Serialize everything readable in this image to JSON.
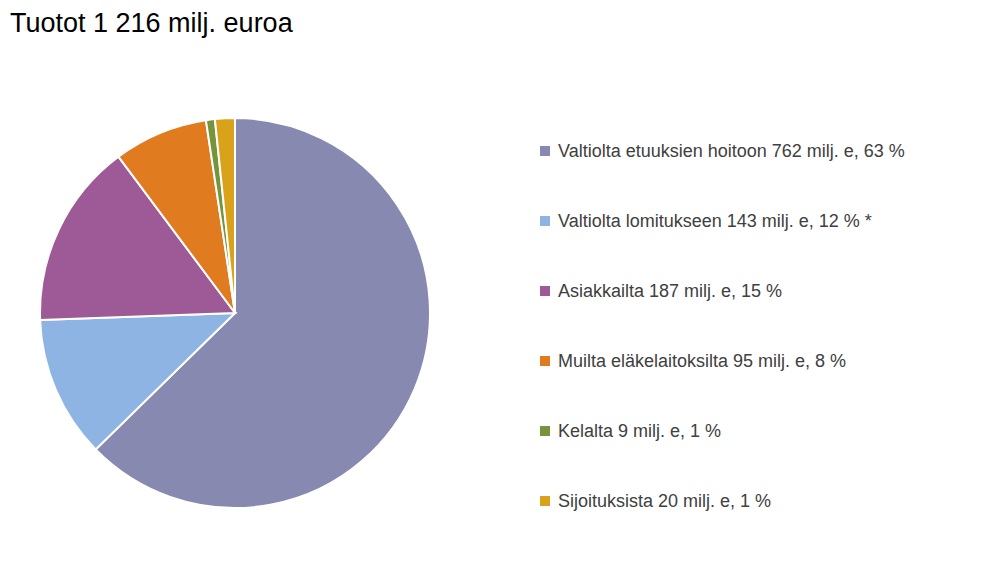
{
  "chart_data": {
    "type": "pie",
    "title": "Tuotot 1 216 milj. euroa",
    "categories": [
      "Valtiolta etuuksien hoitoon 762 milj. e, 63 %",
      "Valtiolta lomitukseen 143 milj. e, 12 % *",
      "Asiakkailta 187 milj. e, 15 %",
      "Muilta eläkelaitoksilta 95 milj. e, 8 %",
      "Kelalta 9 milj. e, 1 %",
      "Sijoituksista 20 milj. e, 1 %"
    ],
    "values": [
      762,
      143,
      187,
      95,
      9,
      20
    ],
    "colors": [
      "#8889b0",
      "#8db4e2",
      "#9e5a96",
      "#e07b1f",
      "#77933c",
      "#d9a21a"
    ],
    "legend": "right"
  }
}
